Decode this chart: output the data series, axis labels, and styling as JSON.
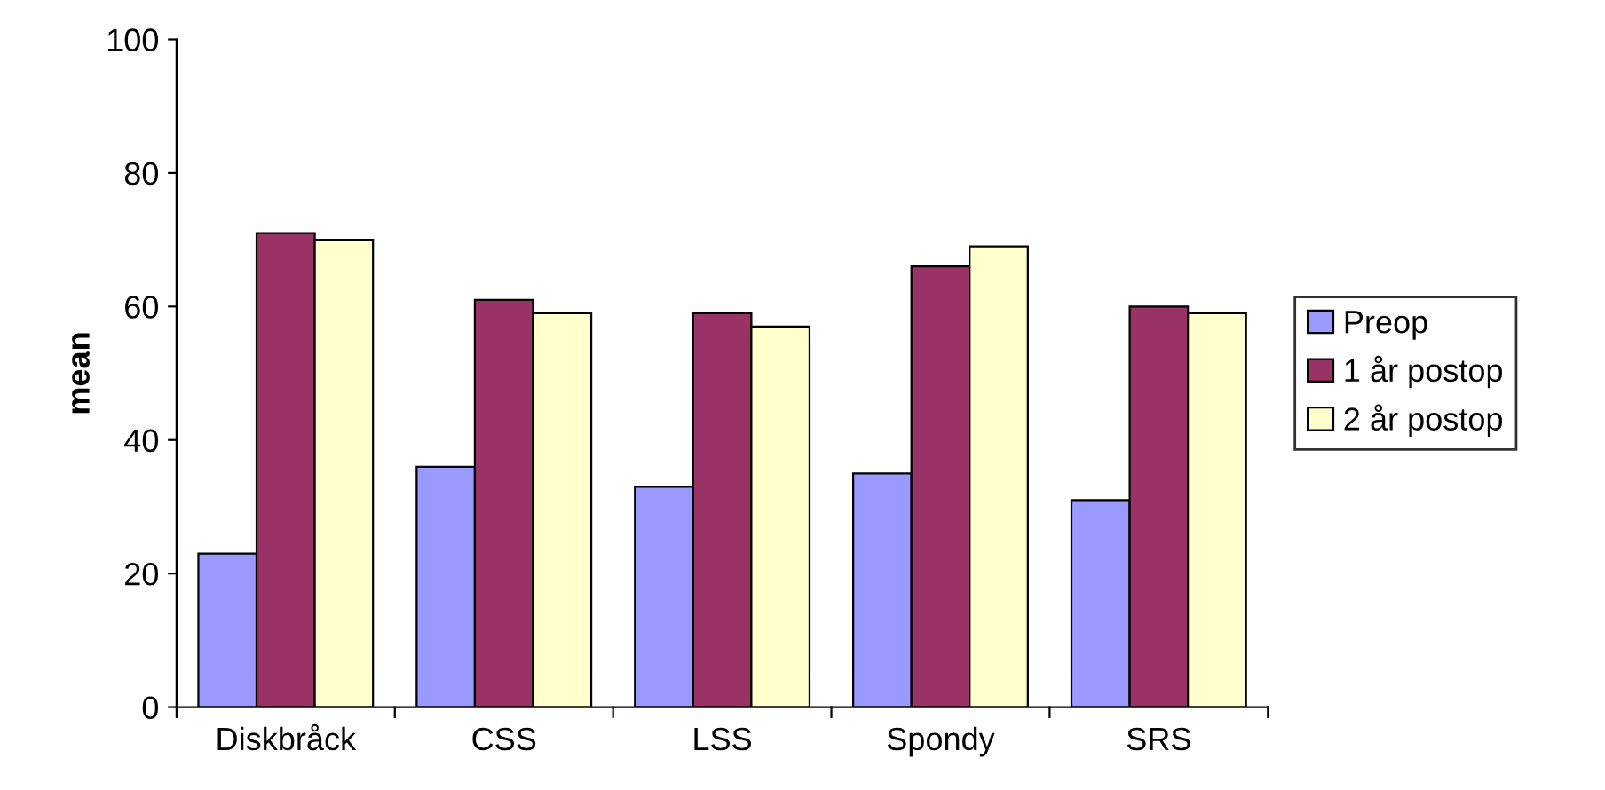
{
  "chart_data": {
    "type": "bar",
    "ylabel": "mean",
    "categories": [
      "Diskbråck",
      "CSS",
      "LSS",
      "Spondy",
      "SRS"
    ],
    "series": [
      {
        "name": "Preop",
        "color": "#9999ff",
        "values": [
          23,
          36,
          33,
          35,
          31
        ]
      },
      {
        "name": "1 år postop",
        "color": "#993366",
        "values": [
          71,
          61,
          59,
          66,
          60
        ]
      },
      {
        "name": "2 år postop",
        "color": "#ffffcc",
        "values": [
          70,
          59,
          57,
          69,
          59
        ]
      }
    ],
    "ylim": [
      0,
      100
    ],
    "yticks": [
      0,
      20,
      40,
      60,
      80,
      100
    ],
    "grid": false,
    "legend": "right"
  }
}
